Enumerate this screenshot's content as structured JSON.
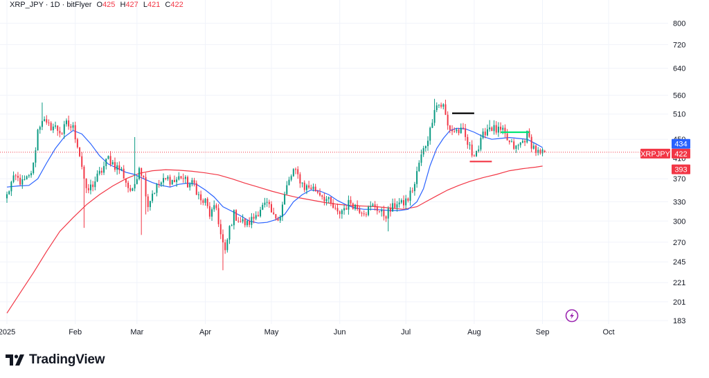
{
  "header": {
    "symbol": "XRP_JPY",
    "sep1": "·",
    "interval": "1D",
    "sep2": "·",
    "exchange": "bitFlyer",
    "o_label": "O",
    "o_value": "425",
    "h_label": "H",
    "h_value": "427",
    "l_label": "L",
    "l_value": "421",
    "c_label": "C",
    "c_value": "422"
  },
  "brand": {
    "name": "TradingView"
  },
  "colors": {
    "up": "#089981",
    "down": "#f23645",
    "ma_short": "#2962ff",
    "ma_long": "#f23645",
    "grid": "#f0f3fa",
    "text": "#131722",
    "black_line": "#000000",
    "green_line": "#00e676",
    "red_line": "#f23645"
  },
  "chart_data": {
    "type": "candlestick",
    "symbol": "XRP_JPY",
    "interval": "1D",
    "y_scale": "log",
    "ylim": [
      180,
      850
    ],
    "y_ticks": [
      183,
      201,
      221,
      245,
      270,
      300,
      330,
      370,
      410,
      450,
      510,
      560,
      640,
      720,
      800
    ],
    "x_months": [
      {
        "label": "2025",
        "day": 0
      },
      {
        "label": "Feb",
        "day": 31
      },
      {
        "label": "Mar",
        "day": 59
      },
      {
        "label": "Apr",
        "day": 90
      },
      {
        "label": "May",
        "day": 120
      },
      {
        "label": "Jun",
        "day": 151
      },
      {
        "label": "Jul",
        "day": 181
      },
      {
        "label": "Aug",
        "day": 212
      },
      {
        "label": "Sep",
        "day": 243
      },
      {
        "label": "Oct",
        "day": 273
      }
    ],
    "x_range_days": [
      0,
      300
    ],
    "anchors": [
      [
        0,
        340
      ],
      [
        2,
        362
      ],
      [
        4,
        372
      ],
      [
        7,
        362
      ],
      [
        10,
        372
      ],
      [
        12,
        395
      ],
      [
        14,
        470
      ],
      [
        16,
        500
      ],
      [
        18,
        480
      ],
      [
        21,
        480
      ],
      [
        25,
        465
      ],
      [
        27,
        485
      ],
      [
        30,
        475
      ],
      [
        32,
        440
      ],
      [
        34,
        395
      ],
      [
        36,
        345
      ],
      [
        39,
        360
      ],
      [
        43,
        385
      ],
      [
        46,
        410
      ],
      [
        49,
        395
      ],
      [
        52,
        385
      ],
      [
        55,
        355
      ],
      [
        57,
        345
      ],
      [
        60,
        395
      ],
      [
        62,
        370
      ],
      [
        64,
        325
      ],
      [
        66,
        345
      ],
      [
        69,
        360
      ],
      [
        73,
        370
      ],
      [
        76,
        365
      ],
      [
        79,
        375
      ],
      [
        82,
        360
      ],
      [
        85,
        360
      ],
      [
        88,
        330
      ],
      [
        90,
        330
      ],
      [
        92,
        310
      ],
      [
        95,
        320
      ],
      [
        97,
        280
      ],
      [
        99,
        255
      ],
      [
        101,
        290
      ],
      [
        103,
        310
      ],
      [
        106,
        300
      ],
      [
        109,
        295
      ],
      [
        112,
        305
      ],
      [
        115,
        320
      ],
      [
        118,
        325
      ],
      [
        121,
        305
      ],
      [
        124,
        310
      ],
      [
        127,
        355
      ],
      [
        130,
        385
      ],
      [
        132,
        375
      ],
      [
        135,
        355
      ],
      [
        138,
        355
      ],
      [
        142,
        345
      ],
      [
        146,
        330
      ],
      [
        150,
        310
      ],
      [
        153,
        320
      ],
      [
        156,
        330
      ],
      [
        159,
        320
      ],
      [
        163,
        315
      ],
      [
        167,
        325
      ],
      [
        170,
        310
      ],
      [
        172,
        310
      ],
      [
        175,
        320
      ],
      [
        177,
        330
      ],
      [
        179,
        325
      ],
      [
        182,
        335
      ],
      [
        185,
        360
      ],
      [
        187,
        400
      ],
      [
        190,
        440
      ],
      [
        192,
        470
      ],
      [
        194,
        530
      ],
      [
        196,
        535
      ],
      [
        198,
        530
      ],
      [
        200,
        480
      ],
      [
        202,
        470
      ],
      [
        204,
        470
      ],
      [
        207,
        465
      ],
      [
        209,
        440
      ],
      [
        211,
        420
      ],
      [
        214,
        430
      ],
      [
        217,
        470
      ],
      [
        219,
        480
      ],
      [
        222,
        470
      ],
      [
        225,
        465
      ],
      [
        228,
        440
      ],
      [
        231,
        430
      ],
      [
        234,
        445
      ],
      [
        236,
        460
      ],
      [
        238,
        440
      ],
      [
        240,
        425
      ],
      [
        242,
        415
      ],
      [
        244,
        422
      ]
    ],
    "ohlc_last": {
      "open": 425,
      "high": 427,
      "low": 421,
      "close": 422
    },
    "spikes": [
      [
        16,
        540,
        0
      ],
      [
        30,
        490,
        0
      ],
      [
        35,
        290,
        1
      ],
      [
        58,
        455,
        0
      ],
      [
        61,
        280,
        1
      ],
      [
        63,
        310,
        1
      ],
      [
        71,
        380,
        0
      ],
      [
        98,
        235,
        1
      ],
      [
        130,
        390,
        0
      ],
      [
        173,
        285,
        1
      ],
      [
        194,
        550,
        0
      ],
      [
        219,
        495,
        0
      ]
    ],
    "ma_short": {
      "name": "MA short",
      "points": [
        [
          0,
          355
        ],
        [
          5,
          357
        ],
        [
          10,
          358
        ],
        [
          14,
          370
        ],
        [
          18,
          400
        ],
        [
          22,
          430
        ],
        [
          26,
          455
        ],
        [
          30,
          470
        ],
        [
          34,
          462
        ],
        [
          38,
          440
        ],
        [
          42,
          415
        ],
        [
          46,
          398
        ],
        [
          50,
          390
        ],
        [
          54,
          382
        ],
        [
          58,
          378
        ],
        [
          62,
          370
        ],
        [
          66,
          363
        ],
        [
          70,
          358
        ],
        [
          74,
          355
        ],
        [
          78,
          360
        ],
        [
          82,
          362
        ],
        [
          86,
          360
        ],
        [
          90,
          350
        ],
        [
          94,
          338
        ],
        [
          98,
          322
        ],
        [
          102,
          315
        ],
        [
          106,
          308
        ],
        [
          110,
          300
        ],
        [
          114,
          297
        ],
        [
          118,
          298
        ],
        [
          122,
          302
        ],
        [
          126,
          310
        ],
        [
          130,
          330
        ],
        [
          134,
          342
        ],
        [
          138,
          350
        ],
        [
          142,
          348
        ],
        [
          146,
          342
        ],
        [
          150,
          332
        ],
        [
          154,
          325
        ],
        [
          158,
          320
        ],
        [
          162,
          318
        ],
        [
          166,
          318
        ],
        [
          170,
          317
        ],
        [
          174,
          316
        ],
        [
          178,
          316
        ],
        [
          182,
          318
        ],
        [
          186,
          330
        ],
        [
          189,
          352
        ],
        [
          192,
          395
        ],
        [
          195,
          430
        ],
        [
          198,
          452
        ],
        [
          201,
          470
        ],
        [
          204,
          475
        ],
        [
          208,
          474
        ],
        [
          212,
          466
        ],
        [
          216,
          456
        ],
        [
          220,
          450
        ],
        [
          224,
          452
        ],
        [
          228,
          454
        ],
        [
          232,
          452
        ],
        [
          236,
          450
        ],
        [
          240,
          440
        ],
        [
          243,
          432
        ]
      ]
    },
    "ma_long": {
      "name": "MA long",
      "points": [
        [
          0,
          190
        ],
        [
          6,
          210
        ],
        [
          12,
          232
        ],
        [
          18,
          258
        ],
        [
          24,
          285
        ],
        [
          30,
          305
        ],
        [
          36,
          325
        ],
        [
          42,
          342
        ],
        [
          48,
          357
        ],
        [
          54,
          370
        ],
        [
          60,
          380
        ],
        [
          66,
          385
        ],
        [
          72,
          387
        ],
        [
          78,
          386
        ],
        [
          84,
          384
        ],
        [
          90,
          381
        ],
        [
          96,
          377
        ],
        [
          102,
          370
        ],
        [
          108,
          362
        ],
        [
          114,
          355
        ],
        [
          120,
          348
        ],
        [
          126,
          342
        ],
        [
          132,
          337
        ],
        [
          138,
          333
        ],
        [
          144,
          329
        ],
        [
          150,
          326
        ],
        [
          156,
          324
        ],
        [
          162,
          323
        ],
        [
          168,
          322
        ],
        [
          174,
          320
        ],
        [
          180,
          318
        ],
        [
          186,
          322
        ],
        [
          190,
          330
        ],
        [
          195,
          340
        ],
        [
          200,
          350
        ],
        [
          205,
          358
        ],
        [
          210,
          365
        ],
        [
          216,
          372
        ],
        [
          222,
          378
        ],
        [
          228,
          385
        ],
        [
          234,
          389
        ],
        [
          240,
          392
        ],
        [
          243,
          394
        ]
      ]
    },
    "levels": [
      {
        "name": "black-level",
        "price": 512,
        "from": 202,
        "to": 212
      },
      {
        "name": "green-level",
        "price": 466,
        "from": 224,
        "to": 237
      },
      {
        "name": "red-level",
        "price": 403,
        "from": 210,
        "to": 220
      }
    ],
    "last_price_tag": {
      "label": "XRPJPY",
      "value": "422",
      "price": 422
    },
    "ma_short_tag": {
      "value": "434",
      "price": 434
    },
    "ma_long_tag": {
      "value": "393",
      "price": 393
    }
  }
}
